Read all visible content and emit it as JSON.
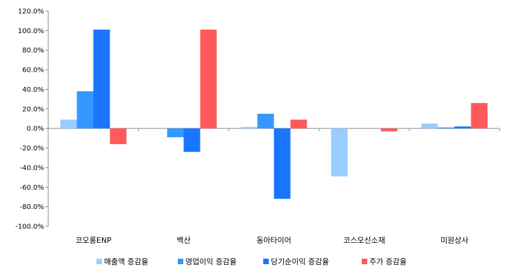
{
  "chart_data": {
    "type": "bar",
    "title": "",
    "xlabel": "",
    "ylabel": "",
    "ylim": [
      -100,
      120
    ],
    "ytick_step": 20,
    "ytick_labels": [
      "-100.0%",
      "-80.0%",
      "-60.0%",
      "-40.0%",
      "-20.0%",
      "0.0%",
      "20.0%",
      "40.0%",
      "60.0%",
      "80.0%",
      "100.0%",
      "120.0%"
    ],
    "categories": [
      "코오롱ENP",
      "백산",
      "동아타이어",
      "코스모신소재",
      "미원상사"
    ],
    "series": [
      {
        "name": "매출액 증감율",
        "color": "#99ccff",
        "values": [
          9,
          null,
          1.5,
          -49,
          5
        ]
      },
      {
        "name": "영업이익 증감율",
        "color": "#3399ff",
        "values": [
          38,
          -9,
          15,
          null,
          1
        ]
      },
      {
        "name": "당기순이익 증감율",
        "color": "#1a75ff",
        "values": [
          101,
          -24,
          -72,
          null,
          2
        ]
      },
      {
        "name": "주가 증감율",
        "color": "#ff5a5a",
        "values": [
          -16,
          101,
          9,
          -3,
          26
        ]
      }
    ],
    "grid": false,
    "legend": "bottom"
  }
}
